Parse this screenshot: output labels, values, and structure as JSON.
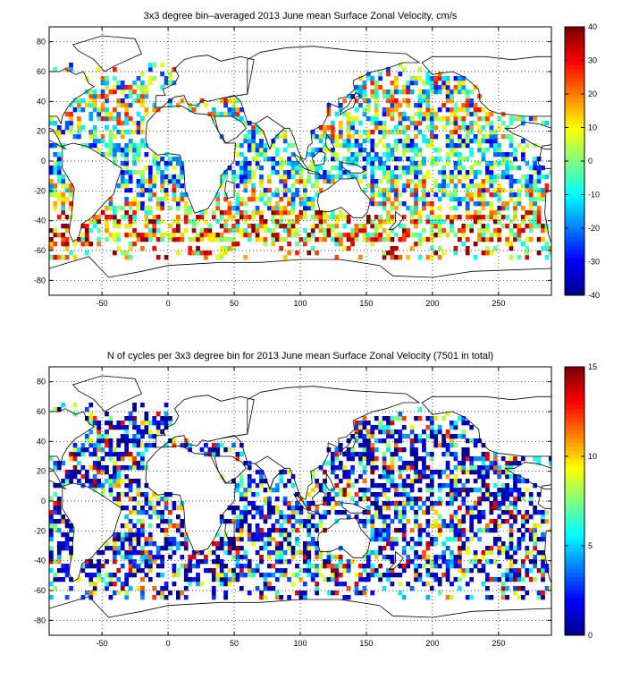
{
  "chart_data": [
    {
      "type": "heatmap",
      "title": "3x3 degree bin–averaged 2013 June mean Surface Zonal Velocity, cm/s",
      "x_ticks": [
        -50,
        0,
        50,
        100,
        150,
        200,
        250
      ],
      "y_ticks": [
        -80,
        -60,
        -40,
        -20,
        0,
        20,
        40,
        60,
        80
      ],
      "xlim": [
        -90,
        290
      ],
      "ylim": [
        -90,
        90
      ],
      "grid": true,
      "colorbar": {
        "min": -40,
        "max": 40,
        "ticks": [
          -40,
          -30,
          -20,
          -10,
          0,
          10,
          20,
          30,
          40
        ]
      },
      "colormap": [
        "#00008f",
        "#0000ff",
        "#0080ff",
        "#00ffff",
        "#80ff80",
        "#ffff00",
        "#ff8000",
        "#ff0000",
        "#800000"
      ],
      "bin_size_deg": 3
    },
    {
      "type": "heatmap",
      "title": "N of cycles per 3x3 degree bin for 2013 June mean Surface Zonal Velocity (7501 in total)",
      "x_ticks": [
        -50,
        0,
        50,
        100,
        150,
        200,
        250
      ],
      "y_ticks": [
        -80,
        -60,
        -40,
        -20,
        0,
        20,
        40,
        60,
        80
      ],
      "xlim": [
        -90,
        290
      ],
      "ylim": [
        -90,
        90
      ],
      "grid": true,
      "colorbar": {
        "min": 0,
        "max": 15,
        "ticks": [
          0,
          5,
          10,
          15
        ]
      },
      "colormap": [
        "#00008f",
        "#0000ff",
        "#0080ff",
        "#00ffff",
        "#80ff80",
        "#ffff00",
        "#ff8000",
        "#ff0000",
        "#800000"
      ],
      "bin_size_deg": 3
    }
  ]
}
